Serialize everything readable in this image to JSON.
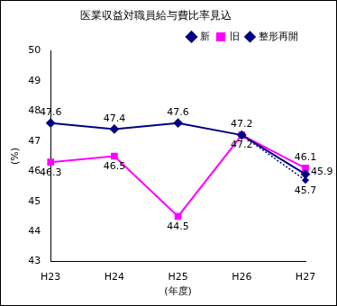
{
  "chart_data": {
    "type": "line",
    "title": "医業収益対職員給与費比率見込",
    "x_label": "(年度)",
    "y_label": "(%)",
    "categories": [
      "H23",
      "H24",
      "H25",
      "H26",
      "H27"
    ],
    "series": [
      {
        "name": "新",
        "color": "#000080",
        "marker": "diamond",
        "line_style": "solid",
        "values": [
          47.6,
          47.4,
          47.6,
          47.2,
          45.9
        ]
      },
      {
        "name": "旧",
        "color": "#ff00ff",
        "marker": "square",
        "line_style": "solid",
        "values": [
          46.3,
          46.5,
          44.5,
          47.2,
          46.1
        ]
      },
      {
        "name": "整形再開",
        "color": "#000080",
        "marker": "diamond",
        "line_style": "dotted",
        "values": [
          null,
          null,
          null,
          47.2,
          45.7
        ],
        "value_labels": [
          null,
          null,
          null,
          null,
          "45.7"
        ]
      }
    ],
    "ylim": [
      43,
      50
    ],
    "yticks": [
      43,
      44,
      45,
      46,
      47,
      48,
      49,
      50
    ],
    "grid": false,
    "legend": "upper right",
    "data_labels": true
  }
}
